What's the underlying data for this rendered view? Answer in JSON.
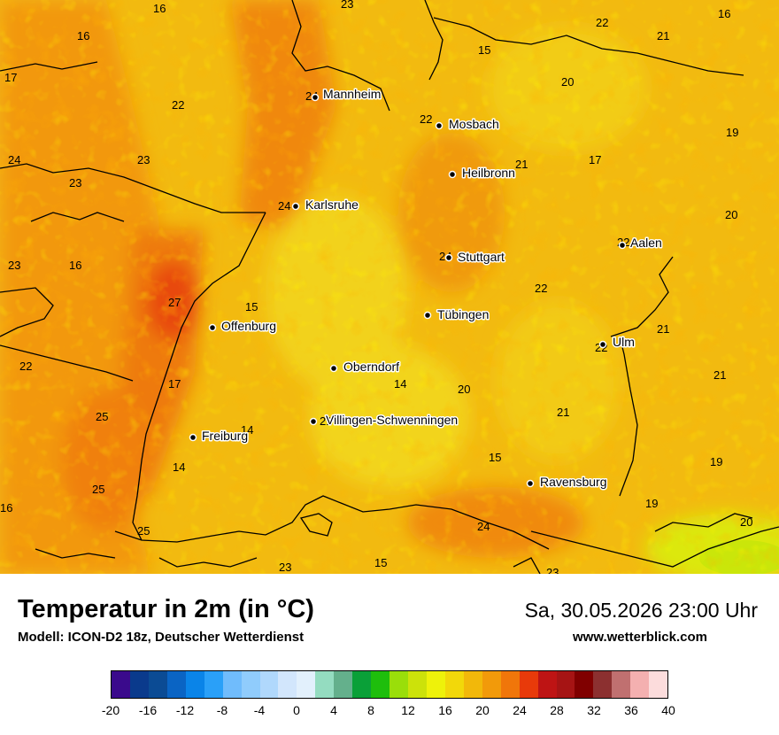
{
  "header": {
    "title": "Temperatur in 2m (in °C)",
    "subtitle": "Modell: ICON-D2 18z, Deutscher Wetterdienst",
    "datetime": "Sa, 30.05.2026 23:00 Uhr",
    "website": "www.wetterblick.com"
  },
  "cities": [
    {
      "name": "Mannheim"
    },
    {
      "name": "Mosbach"
    },
    {
      "name": "Heilbronn"
    },
    {
      "name": "Karlsruhe"
    },
    {
      "name": "Stuttgart"
    },
    {
      "name": "Aalen"
    },
    {
      "name": "Tübingen"
    },
    {
      "name": "Offenburg"
    },
    {
      "name": "Ulm"
    },
    {
      "name": "Oberndorf"
    },
    {
      "name": "Villingen-Schwenningen"
    },
    {
      "name": "Freiburg"
    },
    {
      "name": "Ravensburg"
    }
  ],
  "temperature_values": [
    "16",
    "23",
    "22",
    "16",
    "21",
    "16",
    "15",
    "17",
    "22",
    "20",
    "19",
    "24",
    "23",
    "23",
    "17",
    "20",
    "24",
    "22",
    "21",
    "21",
    "23",
    "22",
    "16",
    "27",
    "15",
    "22",
    "21",
    "14",
    "20",
    "17",
    "22",
    "25",
    "21",
    "14",
    "14",
    "15",
    "19",
    "25",
    "19",
    "16",
    "25",
    "24",
    "20",
    "23",
    "15",
    "23",
    "21",
    "24",
    "24",
    "22"
  ],
  "legend": {
    "colors": [
      "#3a0a8c",
      "#0a3a8c",
      "#0b4b94",
      "#0a64c4",
      "#0a84e8",
      "#2aa0f8",
      "#70bcfc",
      "#90ccfc",
      "#b0d8fc",
      "#d2e6fc",
      "#e2f0fc",
      "#94dcc0",
      "#64b08c",
      "#0aa038",
      "#1ebe0c",
      "#9ade0a",
      "#cce20a",
      "#eef20a",
      "#f2d80a",
      "#f2b80a",
      "#f29a0a",
      "#f0760a",
      "#e83a0a",
      "#be1414",
      "#a61414",
      "#800000",
      "#8c3030",
      "#c07070",
      "#f4b0b0",
      "#fcdcdc"
    ],
    "ticks": [
      "-20",
      "-16",
      "-12",
      "-8",
      "-4",
      "0",
      "4",
      "8",
      "12",
      "16",
      "20",
      "24",
      "28",
      "32",
      "36",
      "40"
    ]
  }
}
